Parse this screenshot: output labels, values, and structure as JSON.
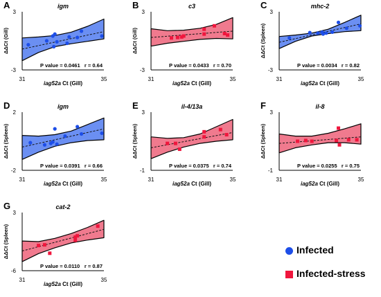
{
  "legend": {
    "infected_label": "Infected",
    "stress_label": "Infected-stress"
  },
  "colors": {
    "infected_fill": "#6b8ff2",
    "infected_marker": "#1d4ee8",
    "stress_fill": "#f07a8e",
    "stress_marker": "#f0163d"
  },
  "chart_data": [
    {
      "panel": "A",
      "title": "igm",
      "group": "infected",
      "type": "scatter",
      "xlabel_italic": "iag52a",
      "xlabel_rest": " Ct (Gill)",
      "ylabel": "ΔΔCt (Gill)",
      "xlim": [
        31,
        35
      ],
      "ylim": [
        -3,
        3
      ],
      "xticks": [
        "31",
        "35"
      ],
      "yticks": [
        "3",
        "-3"
      ],
      "x": [
        31.3,
        32.2,
        32.5,
        32.6,
        32.55,
        32.7,
        33.2,
        33.3,
        33.7,
        33.9,
        34.9
      ],
      "y": [
        -0.4,
        0.0,
        0.5,
        0.7,
        -0.6,
        -0.1,
        -0.25,
        0.4,
        0.35,
        1.0,
        0.5
      ],
      "fit": [
        [
          31,
          -0.85
        ],
        [
          35,
          0.95
        ]
      ],
      "band_upper": [
        [
          31,
          0.3
        ],
        [
          31.8,
          0.4
        ],
        [
          32.6,
          0.55
        ],
        [
          33.4,
          0.9
        ],
        [
          34.2,
          1.5
        ],
        [
          35,
          2.25
        ]
      ],
      "band_lower": [
        [
          31,
          -2.05
        ],
        [
          31.8,
          -1.2
        ],
        [
          32.6,
          -0.6
        ],
        [
          33.4,
          -0.3
        ],
        [
          34.2,
          -0.05
        ],
        [
          35,
          0.2
        ]
      ],
      "p_text": "P value = 0.0461",
      "r_text": "r = 0.64"
    },
    {
      "panel": "B",
      "title": "c3",
      "group": "stress",
      "type": "scatter",
      "xlabel_italic": "iag52a",
      "xlabel_rest": " Ct (Gill)",
      "ylabel": "ΔΔCt (Gill)",
      "xlim": [
        31,
        35
      ],
      "ylim": [
        -3,
        3
      ],
      "xticks": [
        "31",
        "35"
      ],
      "yticks": [
        "3",
        "-3"
      ],
      "x": [
        32.0,
        32.3,
        32.5,
        32.6,
        33.6,
        33.6,
        34.1,
        34.6,
        34.75
      ],
      "y": [
        0.3,
        0.35,
        0.4,
        0.5,
        1.2,
        0.7,
        1.55,
        0.75,
        0.6
      ],
      "fit": [
        [
          31,
          0.35
        ],
        [
          35,
          1.0
        ]
      ],
      "band_upper": [
        [
          31,
          1.25
        ],
        [
          31.8,
          1.05
        ],
        [
          32.6,
          1.1
        ],
        [
          33.4,
          1.3
        ],
        [
          34.2,
          1.7
        ],
        [
          35,
          2.4
        ]
      ],
      "band_lower": [
        [
          31,
          -0.55
        ],
        [
          31.8,
          -0.25
        ],
        [
          32.6,
          -0.05
        ],
        [
          33.4,
          0.15
        ],
        [
          34.2,
          0.25
        ],
        [
          35,
          0.2
        ]
      ],
      "p_text": "P value = 0.0433",
      "r_text": "r = 0.70"
    },
    {
      "panel": "C",
      "title": "mhc-2",
      "group": "infected",
      "type": "scatter",
      "xlabel_italic": "iag52a",
      "xlabel_rest": " Ct (Gill)",
      "ylabel": "ΔΔCt (Spleen)",
      "xlim": [
        31,
        35
      ],
      "ylim": [
        -3,
        3
      ],
      "xticks": [
        "31",
        "35"
      ],
      "yticks": [
        "3",
        "-3"
      ],
      "x": [
        31.5,
        32.5,
        32.9,
        33.1,
        33.15,
        33.3,
        33.6,
        33.9,
        34.3,
        34.95
      ],
      "y": [
        0.3,
        0.85,
        0.8,
        0.9,
        0.7,
        0.8,
        0.9,
        1.9,
        1.3,
        1.55
      ],
      "fit": [
        [
          31,
          -0.15
        ],
        [
          35,
          1.75
        ]
      ],
      "band_upper": [
        [
          31,
          0.45
        ],
        [
          31.8,
          0.6
        ],
        [
          32.6,
          0.8
        ],
        [
          33.4,
          1.2
        ],
        [
          34.2,
          1.9
        ],
        [
          35,
          2.65
        ]
      ],
      "band_lower": [
        [
          31,
          -0.8
        ],
        [
          31.8,
          -0.05
        ],
        [
          32.6,
          0.5
        ],
        [
          33.4,
          0.75
        ],
        [
          34.2,
          0.95
        ],
        [
          35,
          1.05
        ]
      ],
      "p_text": "P value = 0.0034",
      "r_text": "r = 0.82"
    },
    {
      "panel": "D",
      "title": "igm",
      "group": "infected",
      "type": "scatter",
      "xlabel_italic": "iag52a",
      "xlabel_rest": " Ct (Gill)",
      "ylabel": "ΔΔCt (Spleen)",
      "xlim": [
        31,
        35
      ],
      "ylim": [
        -2,
        2
      ],
      "xticks": [
        "31",
        "35"
      ],
      "yticks": [
        "2",
        "-2"
      ],
      "x": [
        31.4,
        32.1,
        32.4,
        32.5,
        32.6,
        32.7,
        33.1,
        33.7,
        33.9,
        34.9
      ],
      "y": [
        -0.1,
        -0.25,
        -0.15,
        -0.05,
        0.85,
        -0.2,
        0.35,
        1.0,
        0.5,
        0.55
      ],
      "fit": [
        [
          31,
          -0.4
        ],
        [
          35,
          0.85
        ]
      ],
      "band_upper": [
        [
          31,
          0.4
        ],
        [
          31.8,
          0.35
        ],
        [
          32.6,
          0.45
        ],
        [
          33.4,
          0.7
        ],
        [
          34.2,
          1.15
        ],
        [
          35,
          1.6
        ]
      ],
      "band_lower": [
        [
          31,
          -1.25
        ],
        [
          31.8,
          -0.75
        ],
        [
          32.6,
          -0.35
        ],
        [
          33.4,
          -0.1
        ],
        [
          34.2,
          0.05
        ],
        [
          35,
          0.1
        ]
      ],
      "p_text": "P value = 0.0391",
      "r_text": "r = 0.66"
    },
    {
      "panel": "E",
      "title": "il-4/13a",
      "group": "stress",
      "type": "scatter",
      "xlabel_italic": "iag52a",
      "xlabel_rest": " Ct (Gill)",
      "ylabel": "ΔΔCt (Spleen)",
      "xlim": [
        31,
        35
      ],
      "ylim": [
        -1,
        3
      ],
      "xticks": [
        "31",
        "35"
      ],
      "yticks": [
        "3",
        "-1"
      ],
      "x": [
        31.8,
        32.2,
        32.4,
        33.6,
        33.6,
        34.4,
        34.7
      ],
      "y": [
        0.85,
        0.85,
        0.45,
        1.3,
        1.65,
        1.8,
        1.45
      ],
      "fit": [
        [
          31,
          0.55
        ],
        [
          35,
          1.6
        ]
      ],
      "band_upper": [
        [
          31,
          1.3
        ],
        [
          31.8,
          1.2
        ],
        [
          32.6,
          1.25
        ],
        [
          33.4,
          1.5
        ],
        [
          34.2,
          2.0
        ],
        [
          35,
          2.5
        ]
      ],
      "band_lower": [
        [
          31,
          -0.2
        ],
        [
          31.8,
          0.25
        ],
        [
          32.6,
          0.6
        ],
        [
          33.4,
          0.85
        ],
        [
          34.2,
          1.0
        ],
        [
          35,
          1.1
        ]
      ],
      "p_text": "P value = 0.0375",
      "r_text": "r = 0.74"
    },
    {
      "panel": "F",
      "title": "il-8",
      "group": "stress",
      "type": "scatter",
      "xlabel_italic": "iag52a",
      "xlabel_rest": " Ct (Gill)",
      "ylabel": "ΔΔCt (Spleen)",
      "xlim": [
        31,
        35
      ],
      "ylim": [
        -1,
        3
      ],
      "xticks": [
        "31",
        "35"
      ],
      "yticks": [
        "3",
        "-1"
      ],
      "x": [
        31.9,
        32.3,
        32.6,
        33.8,
        33.9,
        33.95,
        34.4,
        34.8
      ],
      "y": [
        1.0,
        1.05,
        1.0,
        1.05,
        1.9,
        0.75,
        1.1,
        1.1
      ],
      "fit": [
        [
          31,
          0.85
        ],
        [
          35,
          1.3
        ]
      ],
      "band_upper": [
        [
          31,
          1.5
        ],
        [
          31.8,
          1.35
        ],
        [
          32.6,
          1.35
        ],
        [
          33.4,
          1.55
        ],
        [
          34.2,
          1.85
        ],
        [
          35,
          2.2
        ]
      ],
      "band_lower": [
        [
          31,
          0.2
        ],
        [
          31.8,
          0.55
        ],
        [
          32.6,
          0.75
        ],
        [
          33.4,
          0.9
        ],
        [
          34.2,
          0.9
        ],
        [
          35,
          0.8
        ]
      ],
      "p_text": "P value = 0.0255",
      "r_text": "r = 0.75"
    },
    {
      "panel": "G",
      "title": "cat-2",
      "group": "stress",
      "type": "scatter",
      "xlabel_italic": "iag52a",
      "xlabel_rest": " Ct (Gill)",
      "ylabel": "ΔΔCt (Spleen)",
      "xlim": [
        31,
        35
      ],
      "ylim": [
        -6,
        3
      ],
      "xticks": [
        "31",
        "35"
      ],
      "yticks": [
        "3",
        "-6"
      ],
      "x": [
        31.8,
        32.1,
        32.35,
        33.6,
        33.7,
        33.6,
        34.7
      ],
      "y": [
        -2.1,
        -2.0,
        -3.3,
        -0.8,
        -0.6,
        -1.3,
        0.9
      ],
      "fit": [
        [
          31,
          -2.95
        ],
        [
          35,
          0.4
        ]
      ],
      "band_upper": [
        [
          31,
          -1.4
        ],
        [
          31.8,
          -1.5
        ],
        [
          32.6,
          -1.0
        ],
        [
          33.4,
          -0.25
        ],
        [
          34.2,
          0.7
        ],
        [
          35,
          1.8
        ]
      ],
      "band_lower": [
        [
          31,
          -4.6
        ],
        [
          31.8,
          -3.35
        ],
        [
          32.6,
          -2.45
        ],
        [
          33.4,
          -1.7
        ],
        [
          34.2,
          -1.25
        ],
        [
          35,
          -0.9
        ]
      ],
      "p_text": "P value = 0.0110",
      "r_text": "r = 0.87"
    }
  ]
}
